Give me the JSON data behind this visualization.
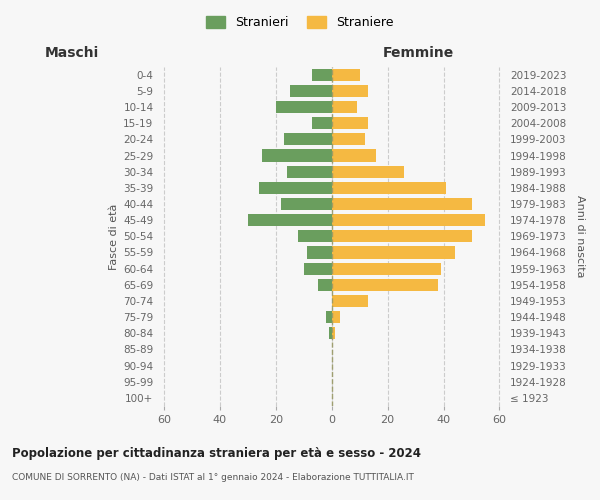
{
  "age_groups": [
    "100+",
    "95-99",
    "90-94",
    "85-89",
    "80-84",
    "75-79",
    "70-74",
    "65-69",
    "60-64",
    "55-59",
    "50-54",
    "45-49",
    "40-44",
    "35-39",
    "30-34",
    "25-29",
    "20-24",
    "15-19",
    "10-14",
    "5-9",
    "0-4"
  ],
  "birth_years": [
    "≤ 1923",
    "1924-1928",
    "1929-1933",
    "1934-1938",
    "1939-1943",
    "1944-1948",
    "1949-1953",
    "1954-1958",
    "1959-1963",
    "1964-1968",
    "1969-1973",
    "1974-1978",
    "1979-1983",
    "1984-1988",
    "1989-1993",
    "1994-1998",
    "1999-2003",
    "2004-2008",
    "2009-2013",
    "2014-2018",
    "2019-2023"
  ],
  "maschi": [
    0,
    0,
    0,
    0,
    1,
    2,
    0,
    5,
    10,
    9,
    12,
    30,
    18,
    26,
    16,
    25,
    17,
    7,
    20,
    15,
    7
  ],
  "femmine": [
    0,
    0,
    0,
    0,
    1,
    3,
    13,
    38,
    39,
    44,
    50,
    55,
    50,
    41,
    26,
    16,
    12,
    13,
    9,
    13,
    10
  ],
  "maschi_color": "#6a9e5e",
  "femmine_color": "#f5b942",
  "background_color": "#f7f7f7",
  "grid_color": "#cccccc",
  "title": "Popolazione per cittadinanza straniera per età e sesso - 2024",
  "subtitle": "COMUNE DI SORRENTO (NA) - Dati ISTAT al 1° gennaio 2024 - Elaborazione TUTTITALIA.IT",
  "header_left": "Maschi",
  "header_right": "Femmine",
  "ylabel_left": "Fasce di età",
  "ylabel_right": "Anni di nascita",
  "legend_label_m": "Stranieri",
  "legend_label_f": "Straniere",
  "xlim": 62
}
